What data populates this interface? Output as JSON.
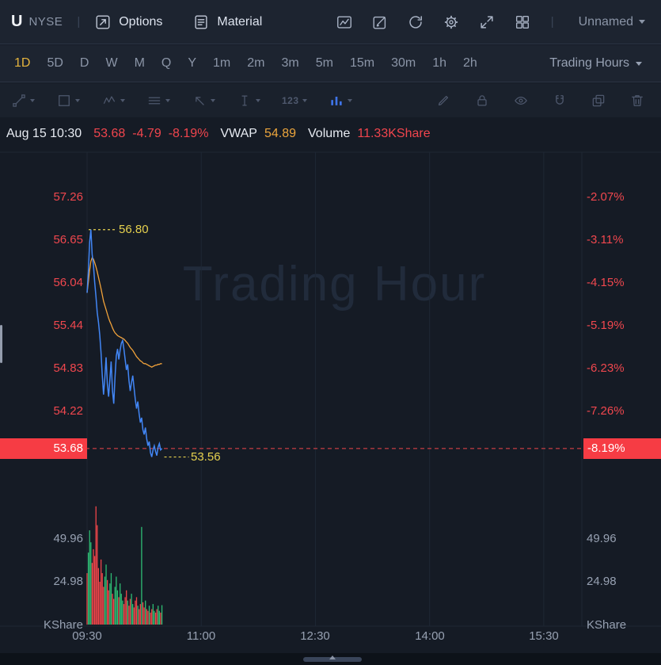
{
  "header": {
    "symbol": "U",
    "exchange": "NYSE",
    "divider": "|",
    "menu": [
      {
        "label": "Options"
      },
      {
        "label": "Material"
      }
    ],
    "workspace_label": "Unnamed"
  },
  "timeframe_bar": {
    "items": [
      "1D",
      "5D",
      "D",
      "W",
      "M",
      "Q",
      "Y",
      "1m",
      "2m",
      "3m",
      "5m",
      "15m",
      "30m",
      "1h",
      "2h"
    ],
    "active": "1D",
    "session_label": "Trading Hours"
  },
  "toolbar": {
    "numbers_label": "123"
  },
  "quote_bar": {
    "timestamp": "Aug 15 10:30",
    "last": "53.68",
    "change": "-4.79",
    "change_pct": "-8.19%",
    "vwap_label": "VWAP",
    "vwap_value": "54.89",
    "volume_label": "Volume",
    "volume_value": "11.33KShare"
  },
  "chart": {
    "watermark": "Trading Hour",
    "price_axis": [
      "57.26",
      "56.65",
      "56.04",
      "55.44",
      "54.83",
      "54.22"
    ],
    "pct_axis": [
      "-2.07%",
      "-3.11%",
      "-4.15%",
      "-5.19%",
      "-6.23%",
      "-7.26%"
    ],
    "last_price_badge": "53.68",
    "last_pct_badge": "-8.19%",
    "high_label": "56.80",
    "low_label": "53.56",
    "volume_axis": [
      "49.96",
      "24.98"
    ],
    "volume_unit_left": "KShare",
    "volume_unit_right": "KShare",
    "time_axis": [
      "09:30",
      "11:00",
      "12:30",
      "14:00",
      "15:30"
    ]
  },
  "chart_data": {
    "type": "line",
    "symbol": "U",
    "title": "U NYSE 1D Trading Hours",
    "interval_minutes": 1,
    "session_start": "09:30",
    "session_minutes": 390,
    "x_tick_minutes": [
      0,
      90,
      180,
      270,
      360
    ],
    "x_tick_labels": [
      "09:30",
      "11:00",
      "12:30",
      "14:00",
      "15:30"
    ],
    "price_ticks": [
      57.26,
      56.65,
      56.04,
      55.44,
      54.83,
      54.22
    ],
    "pct_ticks": [
      -2.07,
      -3.11,
      -4.15,
      -5.19,
      -6.23,
      -7.26
    ],
    "last_price": 53.68,
    "change": -4.79,
    "change_pct": -8.19,
    "vwap_last": 54.89,
    "high": 56.8,
    "low": 53.56,
    "series": [
      {
        "name": "Price",
        "color": "#4286f5",
        "values": [
          55.9,
          56.2,
          56.62,
          56.8,
          56.45,
          56.3,
          56.05,
          55.85,
          55.62,
          55.48,
          55.3,
          55.05,
          54.72,
          54.45,
          54.68,
          54.98,
          54.6,
          54.42,
          54.66,
          54.92,
          54.5,
          54.32,
          54.7,
          55.0,
          55.1,
          54.95,
          55.08,
          55.18,
          55.22,
          55.1,
          54.95,
          54.8,
          54.88,
          54.65,
          54.5,
          54.62,
          54.72,
          54.55,
          54.38,
          54.25,
          54.35,
          54.18,
          54.05,
          54.12,
          53.95,
          53.88,
          53.98,
          53.82,
          53.72,
          53.78,
          53.62,
          53.56,
          53.66,
          53.72,
          53.64,
          53.58,
          53.7,
          53.75,
          53.66,
          53.68
        ]
      },
      {
        "name": "VWAP",
        "color": "#f1a23a",
        "values": [
          55.9,
          56.05,
          56.22,
          56.35,
          56.4,
          56.38,
          56.33,
          56.27,
          56.2,
          56.12,
          56.04,
          55.96,
          55.87,
          55.78,
          55.72,
          55.66,
          55.6,
          55.54,
          55.49,
          55.45,
          55.4,
          55.36,
          55.33,
          55.31,
          55.29,
          55.28,
          55.27,
          55.26,
          55.25,
          55.24,
          55.22,
          55.2,
          55.18,
          55.15,
          55.12,
          55.1,
          55.08,
          55.05,
          55.02,
          54.99,
          54.97,
          54.95,
          54.93,
          54.92,
          54.9,
          54.89,
          54.89,
          54.88,
          54.87,
          54.86,
          54.85,
          54.84,
          54.85,
          54.86,
          54.87,
          54.87,
          54.88,
          54.88,
          54.89,
          54.89
        ]
      }
    ],
    "volume": {
      "unit": "KShare",
      "ticks": [
        49.96,
        24.98
      ],
      "up_color": "#2ebd74",
      "down_color": "#ef454a",
      "last_volume": 11.33,
      "values": [
        30,
        42,
        55,
        48,
        36,
        44,
        40,
        69,
        58,
        33,
        25,
        38,
        30,
        22,
        28,
        35,
        26,
        20,
        24,
        30,
        18,
        15,
        22,
        28,
        20,
        16,
        24,
        18,
        14,
        12,
        16,
        20,
        14,
        11,
        15,
        18,
        12,
        10,
        14,
        16,
        11,
        9,
        12,
        57,
        13,
        10,
        14,
        9,
        8,
        11,
        7,
        9,
        12,
        8,
        7,
        9,
        11,
        8,
        7,
        11.33
      ]
    }
  }
}
